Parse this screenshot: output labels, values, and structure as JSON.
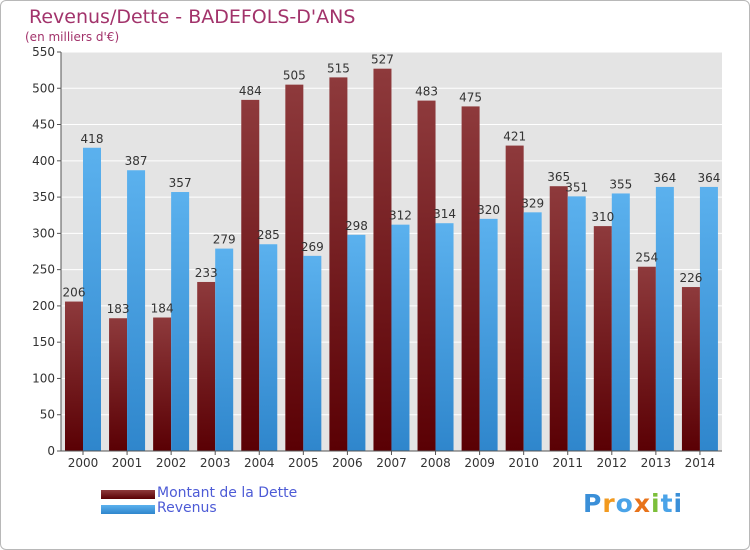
{
  "chart_data": {
    "type": "bar",
    "title": "Revenus/Dette - BADEFOLS-D'ANS",
    "subtitle": "(en milliers d'€)",
    "xlabel": "",
    "ylabel": "",
    "categories": [
      "2000",
      "2001",
      "2002",
      "2003",
      "2004",
      "2005",
      "2006",
      "2007",
      "2008",
      "2009",
      "2010",
      "2011",
      "2012",
      "2013",
      "2014"
    ],
    "series": [
      {
        "name": "Montant de la Dette",
        "color": "#7a1e22",
        "values": [
          206,
          183,
          184,
          233,
          484,
          505,
          515,
          527,
          483,
          475,
          421,
          365,
          310,
          254,
          226
        ]
      },
      {
        "name": "Revenus",
        "color": "#4aa3e8",
        "values": [
          418,
          387,
          357,
          279,
          285,
          269,
          298,
          312,
          314,
          320,
          329,
          351,
          355,
          364,
          364
        ]
      }
    ],
    "ylim": [
      0,
      550
    ],
    "yticks": [
      0,
      50,
      100,
      150,
      200,
      250,
      300,
      350,
      400,
      450,
      500,
      550
    ],
    "grid": true,
    "legend_position": "bottom-left"
  },
  "logo": {
    "text": "Proxiti"
  }
}
